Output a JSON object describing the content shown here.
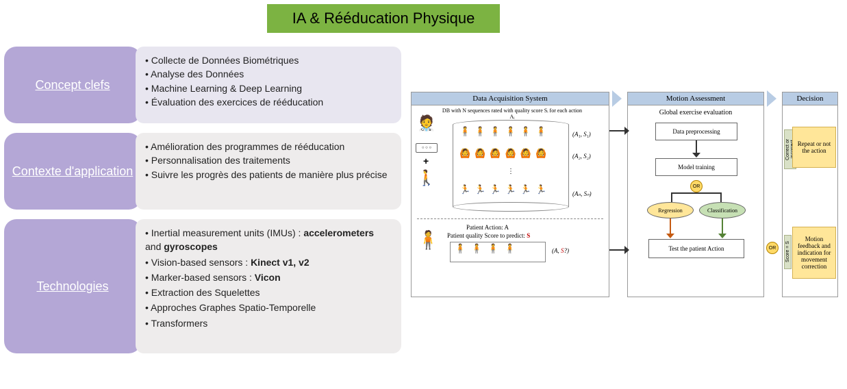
{
  "title": "IA & Rééducation Physique",
  "title_bg": "#8bc34a",
  "rows": [
    {
      "label": "Concept clefs",
      "pill_bg": "#b4a7d6",
      "content_bg": "#e8e6f0",
      "items": [
        "Collecte de Données Biométriques",
        "Analyse des Données",
        "Machine Learning & Deep Learning",
        "Évaluation des exercices de rééducation"
      ]
    },
    {
      "label": "Contexte d'application",
      "pill_bg": "#b4a7d6",
      "content_bg": "#eeecec",
      "items": [
        "Amélioration des programmes de rééducation",
        "Personnalisation des traitements",
        "Suivre les progrès des patients de manière plus précise"
      ]
    },
    {
      "label": "Technologies",
      "pill_bg": "#b4a7d6",
      "content_bg": "#eeecec",
      "items_html": [
        "Inertial measurement units (IMUs) : <b>accelerometers</b> and <b>gyroscopes</b>",
        "Vision-based sensors : <b>Kinect v1, v2</b>",
        "Marker-based sensors : <b>Vicon</b>",
        "Extraction des Squelettes",
        "Approches Graphes Spatio-Temporelle",
        "Transformers"
      ]
    }
  ],
  "diagram": {
    "panels": {
      "acq": "Data Acquisition System",
      "motion": "Motion Assessment",
      "decision": "Decision"
    },
    "acq": {
      "db_caption": "DB with N sequences rated with quality score Sᵢ for each action Aᵢ",
      "labels": [
        "(A₁, S₁)",
        "(A₂, S₂)",
        "⋮",
        "(Aₙ, Sₙ)"
      ],
      "patient_action_title": "Patient Action: A",
      "patient_score": "Patient quality Score to predict: ",
      "patient_score_red": "S",
      "patient_label": "(A, S?)",
      "plus": "+"
    },
    "motion": {
      "global": "Global exercise evaluation",
      "preproc": "Data preprocessing",
      "train": "Model training",
      "reg": "Regression",
      "cls": "Classification",
      "test": "Test the patient Action",
      "or": "OR",
      "reg_color": "#ffe699",
      "cls_color": "#c6e0b4"
    },
    "decision": {
      "top": "Repeat or not the action",
      "bottom": "Motion feedback and indication for movement correction",
      "vlab_top": "Correct or incorrect",
      "vlab_bot": "Score = S"
    }
  }
}
